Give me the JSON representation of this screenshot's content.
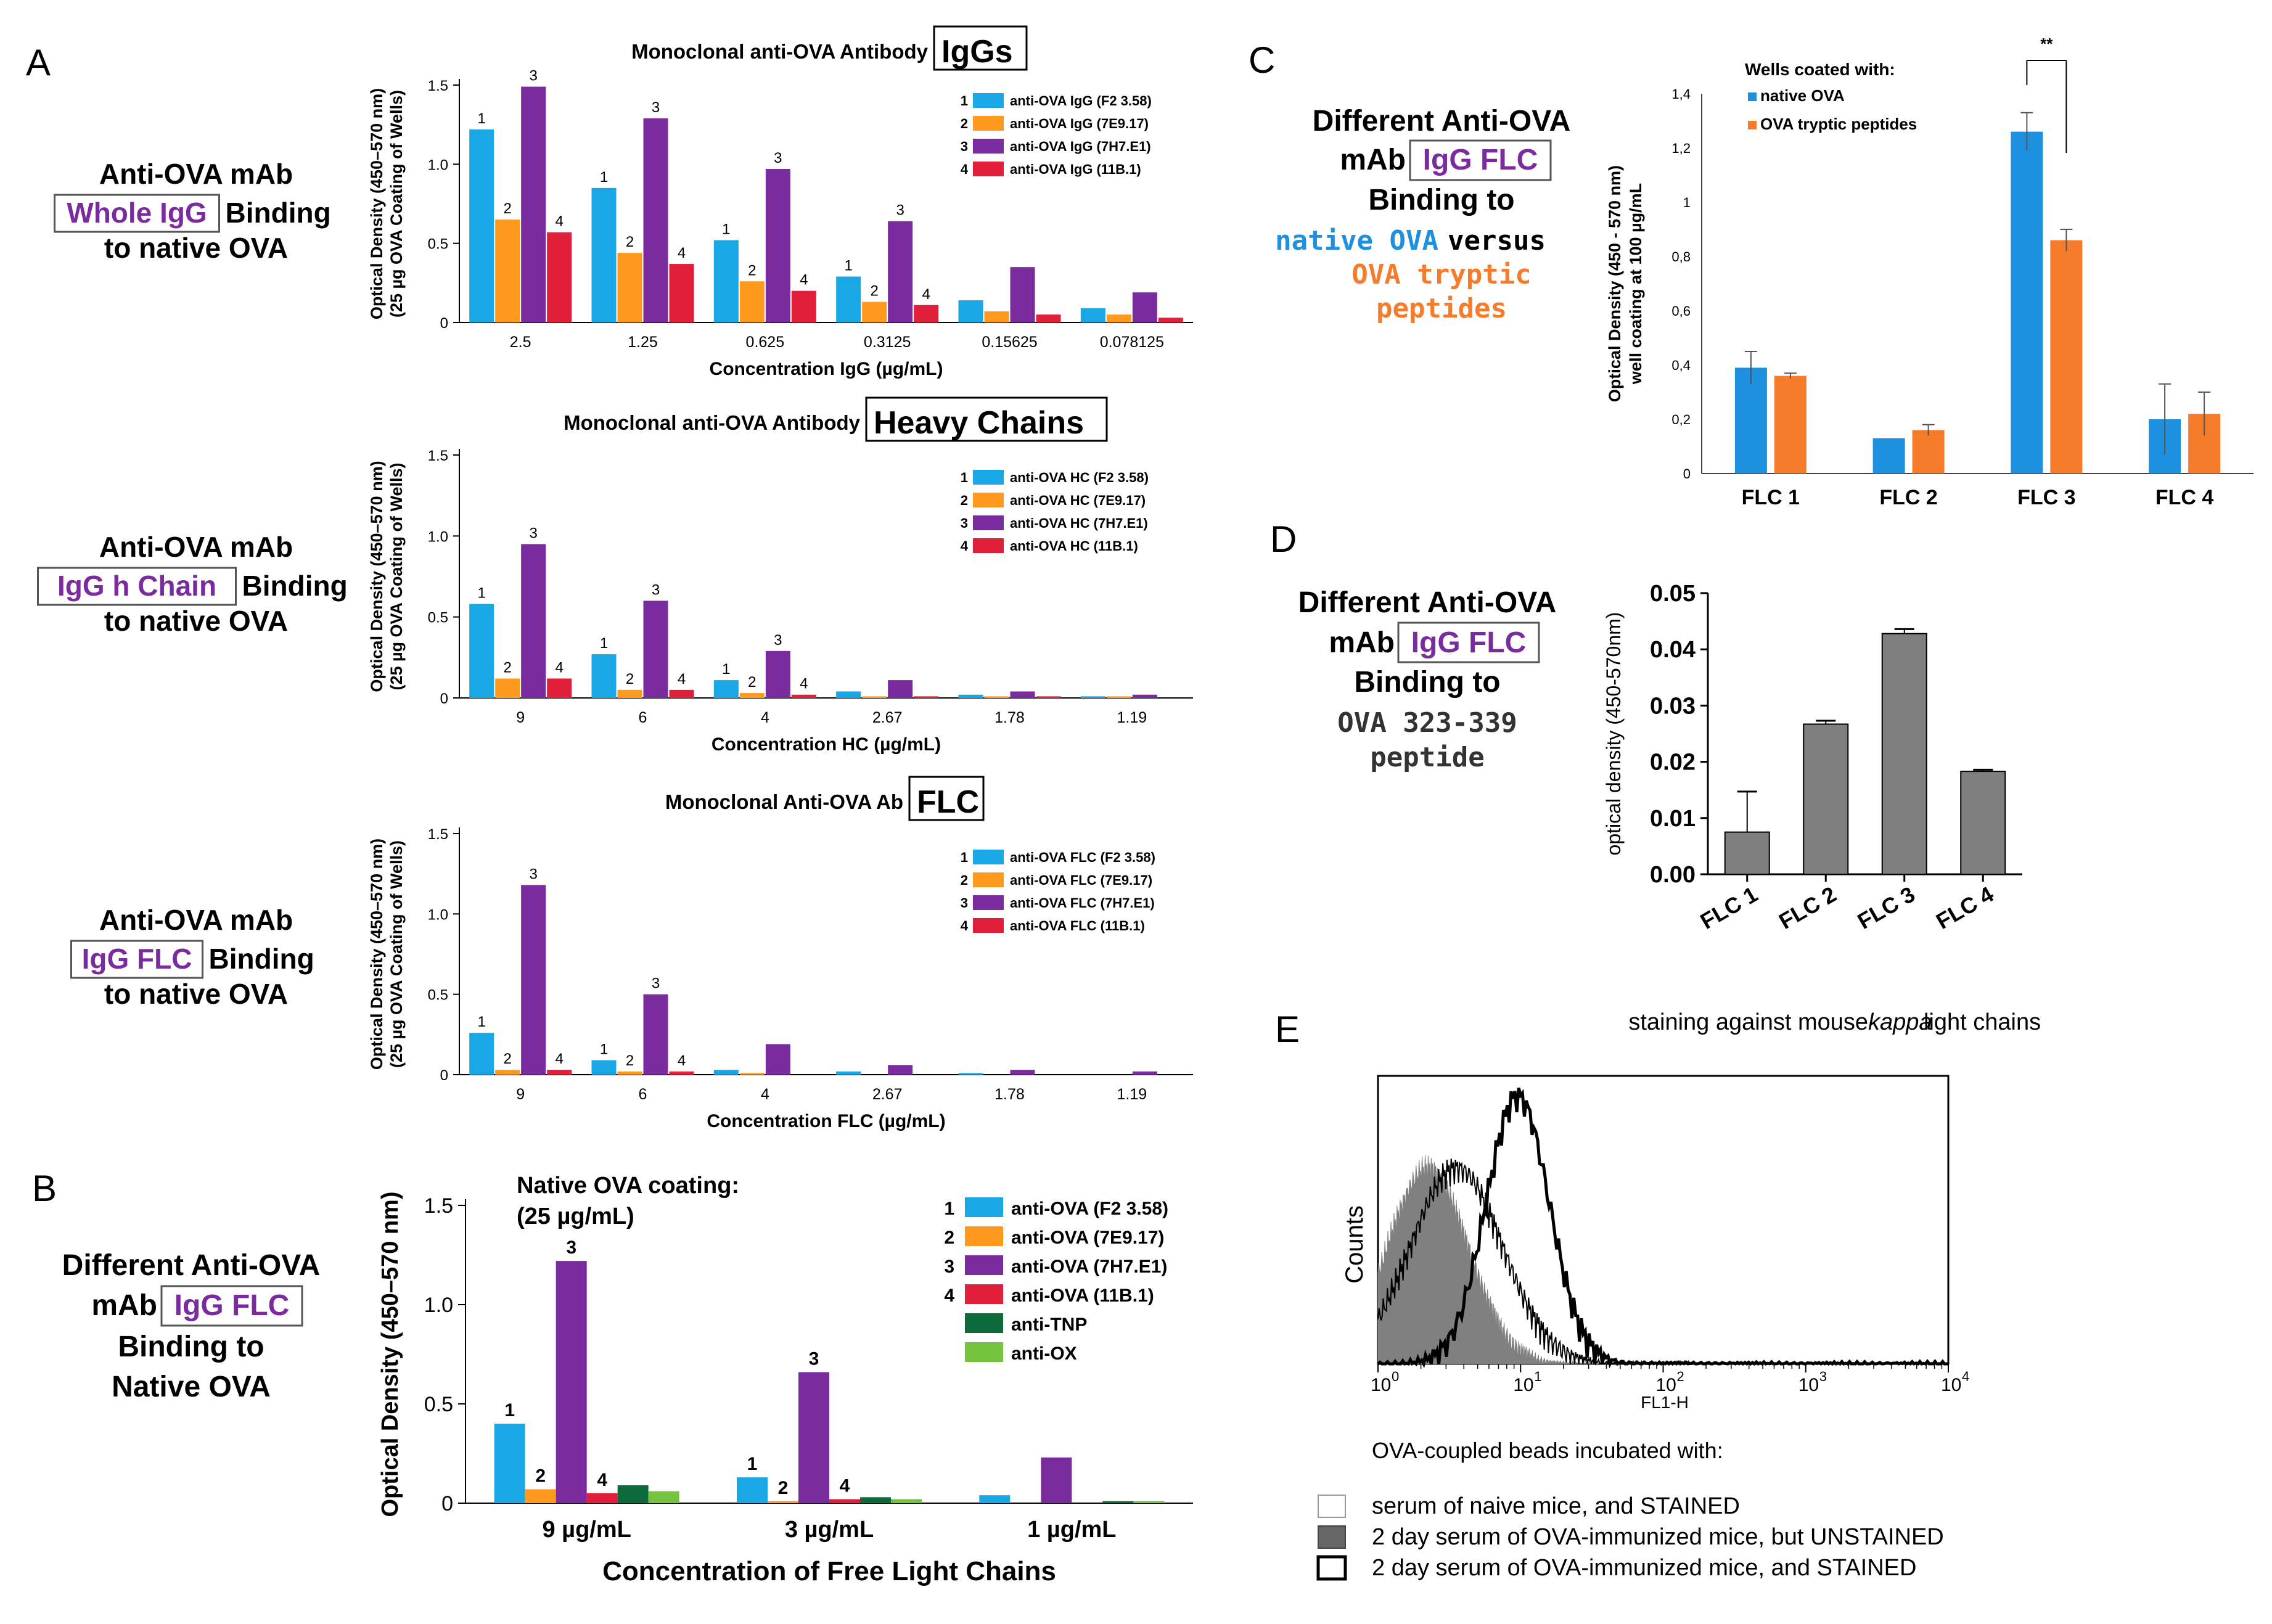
{
  "colors": {
    "blue": "#1aa7e6",
    "orange": "#ff9a1f",
    "purple": "#7a2c9e",
    "red": "#e21f3b",
    "darkgreen": "#0d6b3b",
    "lightgreen": "#73c33d",
    "c_blue": "#1e90e0",
    "c_orange": "#f47c2a",
    "gray": "#7f7f7f",
    "highlight_purple": "#7a2c9e",
    "text_blue": "#1e90e0",
    "text_orange": "#f47c2a"
  },
  "panels": {
    "A": {
      "label": "A",
      "rows": [
        {
          "side_line1": "Anti-OVA mAb",
          "side_box": "Whole IgG",
          "side_after": "Binding",
          "side_line3": "to native OVA",
          "title_prefix": "Monoclonal anti-OVA Antibody",
          "title_box": "IgGs"
        },
        {
          "side_line1": "Anti-OVA mAb",
          "side_box": "IgG h Chain",
          "side_after": "Binding",
          "side_line3": "to native OVA",
          "title_prefix": "Monoclonal anti-OVA Antibody",
          "title_box": "Heavy Chains"
        },
        {
          "side_line1": "Anti-OVA mAb",
          "side_box": "IgG FLC",
          "side_after": "Binding",
          "side_line3": "to native OVA",
          "title_prefix": "Monoclonal Anti-OVA Ab",
          "title_box": "FLC"
        }
      ]
    },
    "B": {
      "label": "B",
      "side_line1": "Different Anti-OVA",
      "side_prefix": "mAb",
      "side_box": "IgG FLC",
      "side_line3": "Binding to",
      "side_line4": "Native OVA"
    },
    "C": {
      "label": "C",
      "side_line1": "Different Anti-OVA",
      "side_prefix": "mAb",
      "side_box": "IgG FLC",
      "side_line3": "Binding to",
      "side_native": "native OVA",
      "side_versus": "versus",
      "side_tryptic1": "OVA tryptic",
      "side_tryptic2": "peptides"
    },
    "D": {
      "label": "D",
      "side_line1": "Different Anti-OVA",
      "side_prefix": "mAb",
      "side_box": "IgG FLC",
      "side_line3": "Binding to",
      "side_line4": "OVA 323-339",
      "side_line5": "peptide"
    },
    "E": {
      "label": "E",
      "title_pre": "staining against mouse ",
      "title_em": "kappa",
      "title_post": " light chains",
      "xlabel": "FL1-H",
      "ylabel": "Counts",
      "ticks": [
        "10^0",
        "10^1",
        "10^2",
        "10^3",
        "10^4"
      ],
      "legend_title": "OVA-coupled beads incubated with:",
      "legend": [
        {
          "label": "serum of naive mice, and STAINED",
          "style": "thin"
        },
        {
          "label": "2 day serum of OVA-immunized mice, but UNSTAINED",
          "style": "filled"
        },
        {
          "label": "2 day serum of OVA-immunized mice, and STAINED",
          "style": "thick"
        }
      ]
    }
  },
  "chart_data": [
    {
      "id": "A1",
      "type": "bar",
      "title": "Monoclonal anti-OVA Antibody IgGs",
      "xlabel": "Concentration IgG (µg/mL)",
      "ylabel": "Optical Density (450–570 nm) (25 µg OVA Coating of Wells)",
      "ylim": [
        0,
        1.5
      ],
      "yticks": [
        "0",
        "0.5",
        "1.0",
        "1.5"
      ],
      "categories": [
        "2.5",
        "1.25",
        "0.625",
        "0.3125",
        "0.15625",
        "0.078125"
      ],
      "series": [
        {
          "name": "anti-OVA IgG (F2 3.58)",
          "num": "1",
          "values": [
            1.22,
            0.85,
            0.52,
            0.29,
            0.14,
            0.09
          ]
        },
        {
          "name": "anti-OVA IgG (7E9.17)",
          "num": "2",
          "values": [
            0.65,
            0.44,
            0.26,
            0.13,
            0.07,
            0.05
          ]
        },
        {
          "name": "anti-OVA IgG (7H7.E1)",
          "num": "3",
          "values": [
            1.49,
            1.29,
            0.97,
            0.64,
            0.35,
            0.19
          ]
        },
        {
          "name": "anti-OVA IgG (11B.1)",
          "num": "4",
          "values": [
            0.57,
            0.37,
            0.2,
            0.11,
            0.05,
            0.03
          ]
        }
      ],
      "labeled_groups": [
        0,
        1,
        2,
        3
      ]
    },
    {
      "id": "A2",
      "type": "bar",
      "title": "Monoclonal anti-OVA Antibody Heavy Chains",
      "xlabel": "Concentration HC (µg/mL)",
      "ylabel": "Optical Density (450–570 nm) (25 µg OVA Coating of Wells)",
      "ylim": [
        0,
        1.5
      ],
      "yticks": [
        "0",
        "0.5",
        "1.0",
        "1.5"
      ],
      "categories": [
        "9",
        "6",
        "4",
        "2.67",
        "1.78",
        "1.19"
      ],
      "series": [
        {
          "name": "anti-OVA HC (F2 3.58)",
          "num": "1",
          "values": [
            0.58,
            0.27,
            0.11,
            0.04,
            0.02,
            0.01
          ]
        },
        {
          "name": "anti-OVA HC (7E9.17)",
          "num": "2",
          "values": [
            0.12,
            0.05,
            0.03,
            0.01,
            0.01,
            0.01
          ]
        },
        {
          "name": "anti-OVA HC (7H7.E1)",
          "num": "3",
          "values": [
            0.95,
            0.6,
            0.29,
            0.11,
            0.04,
            0.02
          ]
        },
        {
          "name": "anti-OVA HC (11B.1)",
          "num": "4",
          "values": [
            0.12,
            0.05,
            0.02,
            0.01,
            0.01,
            0.0
          ]
        }
      ],
      "labeled_groups": [
        0,
        1,
        2
      ]
    },
    {
      "id": "A3",
      "type": "bar",
      "title": "Monoclonal Anti-OVA Ab FLC",
      "xlabel": "Concentration FLC (µg/mL)",
      "ylabel": "Optical Density (450–570 nm) (25 µg OVA Coating of Wells)",
      "ylim": [
        0,
        1.5
      ],
      "yticks": [
        "0",
        "0.5",
        "1.0",
        "1.5"
      ],
      "categories": [
        "9",
        "6",
        "4",
        "2.67",
        "1.78",
        "1.19"
      ],
      "series": [
        {
          "name": "anti-OVA FLC (F2 3.58)",
          "num": "1",
          "values": [
            0.26,
            0.09,
            0.03,
            0.02,
            0.01,
            0.0
          ]
        },
        {
          "name": "anti-OVA FLC (7E9.17)",
          "num": "2",
          "values": [
            0.03,
            0.02,
            0.01,
            0.0,
            0.0,
            0.0
          ]
        },
        {
          "name": "anti-OVA FLC (7H7.E1)",
          "num": "3",
          "values": [
            1.18,
            0.5,
            0.19,
            0.06,
            0.03,
            0.02
          ]
        },
        {
          "name": "anti-OVA FLC (11B.1)",
          "num": "4",
          "values": [
            0.03,
            0.02,
            0.0,
            0.0,
            0.0,
            0.0
          ]
        }
      ],
      "labeled_groups": [
        0,
        1
      ]
    },
    {
      "id": "B",
      "type": "bar",
      "title": "Native OVA coating: (25 µg/mL)",
      "title_line1": "Native OVA coating:",
      "title_line2": "(25 µg/mL)",
      "xlabel": "Concentration of Free Light Chains",
      "ylabel": "Optical Density (450–570 nm)",
      "ylim": [
        0,
        1.5
      ],
      "yticks": [
        "0",
        "0.5",
        "1.0",
        "1.5"
      ],
      "categories": [
        "9 µg/mL",
        "3 µg/mL",
        "1 µg/mL"
      ],
      "series": [
        {
          "name": "anti-OVA (F2 3.58)",
          "num": "1",
          "values": [
            0.4,
            0.13,
            0.04
          ]
        },
        {
          "name": "anti-OVA (7E9.17)",
          "num": "2",
          "values": [
            0.07,
            0.01,
            0.0
          ]
        },
        {
          "name": "anti-OVA (7H7.E1)",
          "num": "3",
          "values": [
            1.22,
            0.66,
            0.23
          ]
        },
        {
          "name": "anti-OVA (11B.1)",
          "num": "4",
          "values": [
            0.05,
            0.02,
            0.0
          ]
        },
        {
          "name": "anti-TNP",
          "num": "",
          "values": [
            0.09,
            0.03,
            0.01
          ]
        },
        {
          "name": "anti-OX",
          "num": "",
          "values": [
            0.06,
            0.02,
            0.01
          ]
        }
      ],
      "labeled_groups": [
        0,
        1
      ]
    },
    {
      "id": "C",
      "type": "bar",
      "title": "Wells coated with:",
      "xlabel": "",
      "ylabel": "Optical Density (450 - 570 nm) well coating at 100 µg/mL",
      "ylabel_line1": "Optical Density (450 - 570 nm)",
      "ylabel_line2": "well coating at 100 µg/mL",
      "ylim": [
        0,
        1.4
      ],
      "yticks": [
        "0",
        "0,2",
        "0,4",
        "0,6",
        "0,8",
        "1",
        "1,2",
        "1,4"
      ],
      "categories": [
        "FLC 1",
        "FLC 2",
        "FLC 3",
        "FLC 4"
      ],
      "series": [
        {
          "name": "native OVA",
          "values": [
            0.39,
            0.13,
            1.26,
            0.2
          ],
          "errors": [
            0.06,
            0.0,
            0.07,
            0.13
          ]
        },
        {
          "name": "OVA tryptic peptides",
          "values": [
            0.36,
            0.16,
            0.86,
            0.22
          ],
          "errors": [
            0.01,
            0.02,
            0.04,
            0.08
          ]
        }
      ],
      "significance": "**"
    },
    {
      "id": "D",
      "type": "bar",
      "title": "",
      "xlabel": "",
      "ylabel": "optical density (450-570nm)",
      "ylim": [
        0,
        0.05
      ],
      "yticks": [
        "0.00",
        "0.01",
        "0.02",
        "0.03",
        "0.04",
        "0.05"
      ],
      "categories": [
        "FLC 1",
        "FLC 2",
        "FLC 3",
        "FLC 4"
      ],
      "values": [
        0.0075,
        0.0267,
        0.0428,
        0.0183
      ],
      "errors": [
        0.0072,
        0.0006,
        0.0008,
        0.0003
      ]
    }
  ]
}
